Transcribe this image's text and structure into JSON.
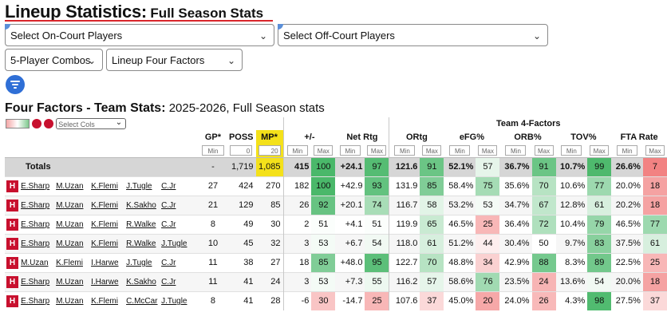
{
  "title": {
    "main": "Lineup Statistics:",
    "sub": "Full Season Stats"
  },
  "controls": {
    "on_court": "Select On-Court Players",
    "off_court": "Select Off-Court Players",
    "combos": "5-Player Combos",
    "factors": "Lineup Four Factors"
  },
  "section": {
    "title": "Four Factors - Team Stats:",
    "subtitle": "2025-2026, Full Season stats"
  },
  "table_tools": {
    "select_cols": "Select Cols",
    "clear_icon": "x-icon",
    "info_icon": "info-icon"
  },
  "headers": {
    "group": "Team 4-Factors",
    "gp": "GP*",
    "poss": "POSS",
    "mp": "MP*",
    "pm": "+/-",
    "net": "Net Rtg",
    "ortg": "ORtg",
    "efg": "eFG%",
    "orb": "ORB%",
    "tov": "TOV%",
    "fta": "FTA Rate"
  },
  "filters": {
    "min": "Min",
    "max": "Max",
    "poss_min": "0",
    "mp_min": "20"
  },
  "totals": {
    "label": "Totals",
    "gp": "-",
    "poss": "1,719",
    "mp": "1,085",
    "pm": "415",
    "pm_p": "100",
    "net": "+24.1",
    "net_p": "97",
    "ortg": "121.6",
    "ortg_p": "91",
    "efg": "52.1%",
    "efg_p": "57",
    "orb": "36.7%",
    "orb_p": "91",
    "tov": "10.7%",
    "tov_p": "99",
    "fta": "26.6%",
    "fta_p": "7"
  },
  "rows": [
    {
      "players": [
        "E.Sharp",
        "M.Uzan",
        "K.Flemi",
        "J.Tugle",
        "C.Jr"
      ],
      "gp": "27",
      "poss": "424",
      "mp": "270",
      "pm": "182",
      "pm_p": "100",
      "net": "+42.9",
      "net_p": "93",
      "ortg": "131.9",
      "ortg_p": "85",
      "efg": "58.4%",
      "efg_p": "75",
      "orb": "35.6%",
      "orb_p": "70",
      "tov": "10.6%",
      "tov_p": "77",
      "fta": "20.0%",
      "fta_p": "18"
    },
    {
      "players": [
        "E.Sharp",
        "M.Uzan",
        "K.Flemi",
        "K.Sakho",
        "C.Jr"
      ],
      "gp": "21",
      "poss": "129",
      "mp": "85",
      "pm": "26",
      "pm_p": "92",
      "net": "+20.1",
      "net_p": "74",
      "ortg": "116.7",
      "ortg_p": "58",
      "efg": "53.2%",
      "efg_p": "53",
      "orb": "34.7%",
      "orb_p": "67",
      "tov": "12.8%",
      "tov_p": "61",
      "fta": "20.2%",
      "fta_p": "18"
    },
    {
      "players": [
        "E.Sharp",
        "M.Uzan",
        "K.Flemi",
        "R.Walke",
        "C.Jr"
      ],
      "gp": "8",
      "poss": "49",
      "mp": "30",
      "pm": "2",
      "pm_p": "51",
      "net": "+4.1",
      "net_p": "51",
      "ortg": "119.9",
      "ortg_p": "65",
      "efg": "46.5%",
      "efg_p": "25",
      "orb": "36.4%",
      "orb_p": "72",
      "tov": "10.4%",
      "tov_p": "79",
      "fta": "46.5%",
      "fta_p": "77"
    },
    {
      "players": [
        "E.Sharp",
        "M.Uzan",
        "K.Flemi",
        "R.Walke",
        "J.Tugle"
      ],
      "gp": "10",
      "poss": "45",
      "mp": "32",
      "pm": "3",
      "pm_p": "53",
      "net": "+6.7",
      "net_p": "54",
      "ortg": "118.0",
      "ortg_p": "61",
      "efg": "51.2%",
      "efg_p": "44",
      "orb": "30.4%",
      "orb_p": "50",
      "tov": "9.7%",
      "tov_p": "83",
      "fta": "37.5%",
      "fta_p": "61"
    },
    {
      "players": [
        "M.Uzan",
        "K.Flemi",
        "I.Harwe",
        "J.Tugle",
        "C.Jr"
      ],
      "gp": "11",
      "poss": "38",
      "mp": "27",
      "pm": "18",
      "pm_p": "85",
      "net": "+48.0",
      "net_p": "95",
      "ortg": "122.7",
      "ortg_p": "70",
      "efg": "48.8%",
      "efg_p": "34",
      "orb": "42.9%",
      "orb_p": "88",
      "tov": "8.3%",
      "tov_p": "89",
      "fta": "22.5%",
      "fta_p": "25"
    },
    {
      "players": [
        "E.Sharp",
        "M.Uzan",
        "I.Harwe",
        "K.Sakho",
        "C.Jr"
      ],
      "gp": "11",
      "poss": "41",
      "mp": "24",
      "pm": "3",
      "pm_p": "53",
      "net": "+7.3",
      "net_p": "55",
      "ortg": "116.2",
      "ortg_p": "57",
      "efg": "58.6%",
      "efg_p": "76",
      "orb": "23.5%",
      "orb_p": "24",
      "tov": "13.6%",
      "tov_p": "54",
      "fta": "20.0%",
      "fta_p": "18"
    },
    {
      "players": [
        "E.Sharp",
        "M.Uzan",
        "K.Flemi",
        "C.McCar",
        "J.Tugle"
      ],
      "gp": "8",
      "poss": "41",
      "mp": "28",
      "pm": "-6",
      "pm_p": "30",
      "net": "-14.7",
      "net_p": "25",
      "ortg": "107.6",
      "ortg_p": "37",
      "efg": "45.0%",
      "efg_p": "20",
      "orb": "24.0%",
      "orb_p": "26",
      "tov": "4.3%",
      "tov_p": "98",
      "fta": "27.5%",
      "fta_p": "37"
    }
  ]
}
